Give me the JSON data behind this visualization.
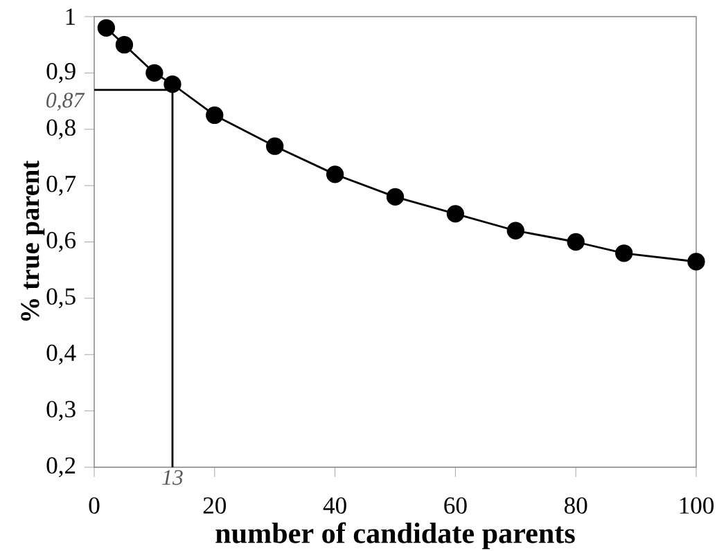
{
  "chart_data": {
    "type": "line",
    "xlabel": "number of candidate parents",
    "ylabel": "% true parent",
    "x": [
      2,
      5,
      10,
      13,
      20,
      30,
      40,
      50,
      60,
      70,
      80,
      88,
      100
    ],
    "series": [
      {
        "color": "#000000",
        "values": [
          0.98,
          0.95,
          0.9,
          0.88,
          0.825,
          0.77,
          0.72,
          0.68,
          0.65,
          0.62,
          0.6,
          0.58,
          0.565
        ]
      }
    ],
    "xlim": [
      0,
      100
    ],
    "ylim": [
      0.2,
      1
    ],
    "xticks": [
      0,
      20,
      40,
      60,
      80,
      100
    ],
    "yticks": [
      {
        "value": 0.2,
        "label": "0,2"
      },
      {
        "value": 0.3,
        "label": "0,3"
      },
      {
        "value": 0.4,
        "label": "0,4"
      },
      {
        "value": 0.5,
        "label": "0,5"
      },
      {
        "value": 0.6,
        "label": "0,6"
      },
      {
        "value": 0.7,
        "label": "0,7"
      },
      {
        "value": 0.8,
        "label": "0,8"
      },
      {
        "value": 0.9,
        "label": "0,9"
      },
      {
        "value": 1,
        "label": "1"
      }
    ],
    "ref_lines": [
      {
        "axis": "x",
        "value": 13,
        "label": "13"
      },
      {
        "axis": "y",
        "value": 0.87,
        "label": "0,87"
      }
    ],
    "grid": false,
    "legend": false,
    "marker": "circle",
    "line_style": "solid"
  }
}
